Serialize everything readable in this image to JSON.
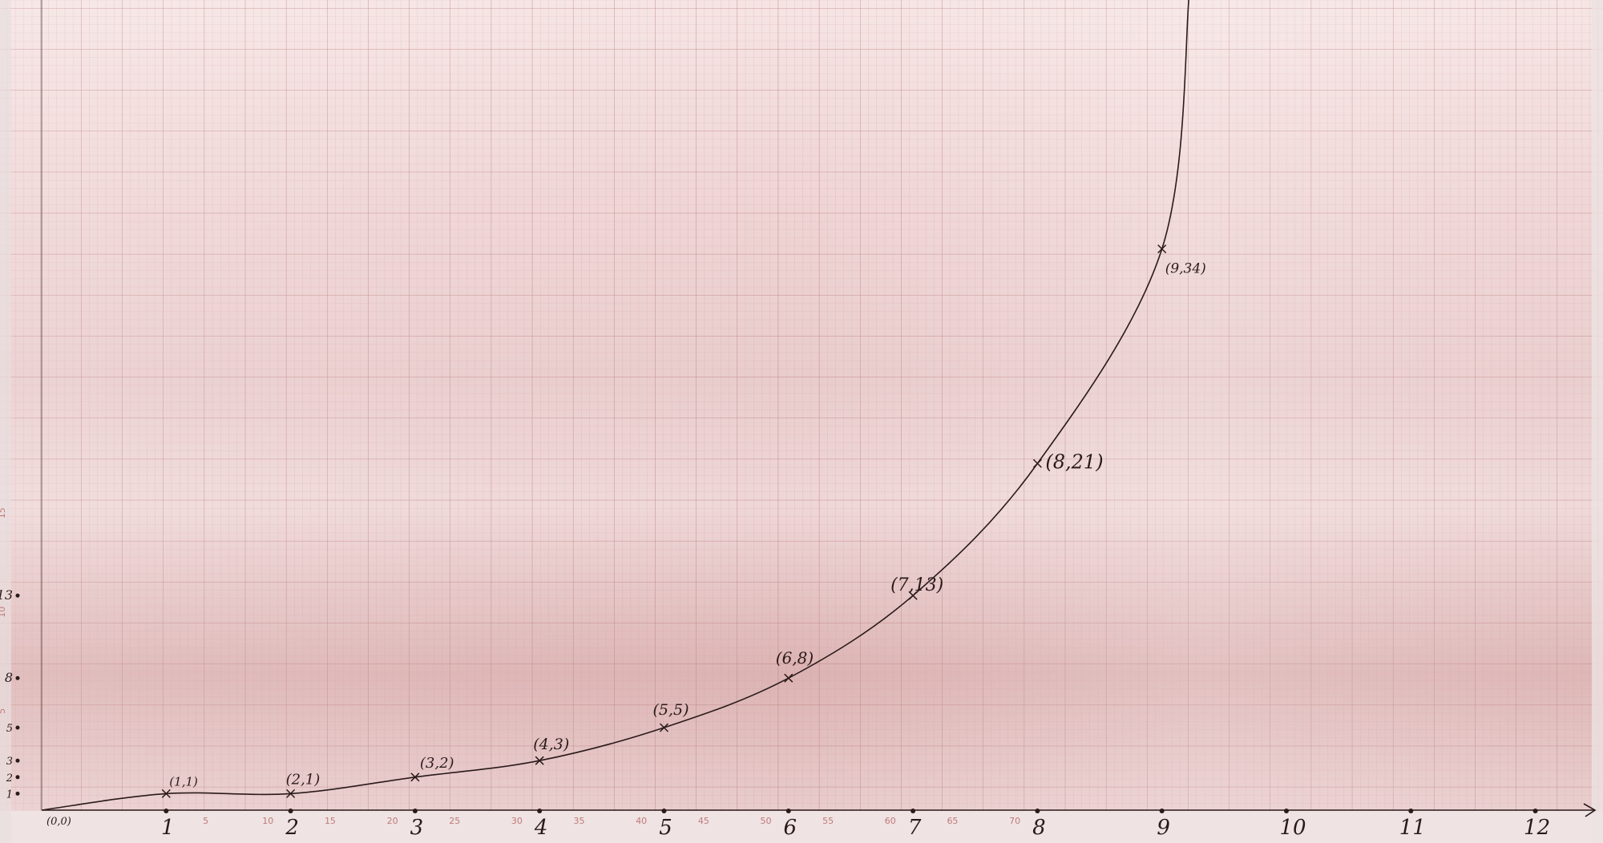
{
  "chart_data": {
    "type": "line",
    "title": "",
    "xlabel": "",
    "ylabel": "",
    "x": [
      0,
      1,
      2,
      3,
      4,
      5,
      6,
      7,
      8,
      9
    ],
    "series": [
      {
        "name": "",
        "values": [
          0,
          1,
          1,
          2,
          3,
          5,
          8,
          13,
          21,
          34
        ]
      }
    ],
    "point_labels": [
      "(0,0)",
      "(1,1)",
      "(2,1)",
      "(3,2)",
      "(4,3)",
      "(5,5)",
      "(6,8)",
      "(7,13)",
      "(8,21)",
      "(9,34)"
    ],
    "x_tick_labels": [
      "1",
      "2",
      "3",
      "4",
      "5",
      "6",
      "7",
      "8",
      "9",
      "10",
      "11",
      "12"
    ],
    "y_tick_labels": [
      "1",
      "2",
      "3",
      "5",
      "8",
      "13"
    ],
    "y_tick_values": [
      1,
      2,
      3,
      5,
      8,
      13
    ],
    "printed_x_labels": [
      "5",
      "10",
      "15",
      "20",
      "25",
      "30",
      "35",
      "40",
      "45",
      "50",
      "55",
      "60",
      "65",
      "70"
    ],
    "printed_y_labels": [
      "5",
      "10",
      "15"
    ],
    "xlim": [
      0,
      12.5
    ],
    "ylim": [
      0,
      38
    ],
    "grid": true,
    "colors": {
      "paper": "#f3dcdc",
      "paper_shadow": "#c9a0a0",
      "grid_minor": "#d9a6a6",
      "grid_major": "#c48585",
      "ink": "#2a1a1a",
      "printed": "#c07a7a"
    }
  }
}
